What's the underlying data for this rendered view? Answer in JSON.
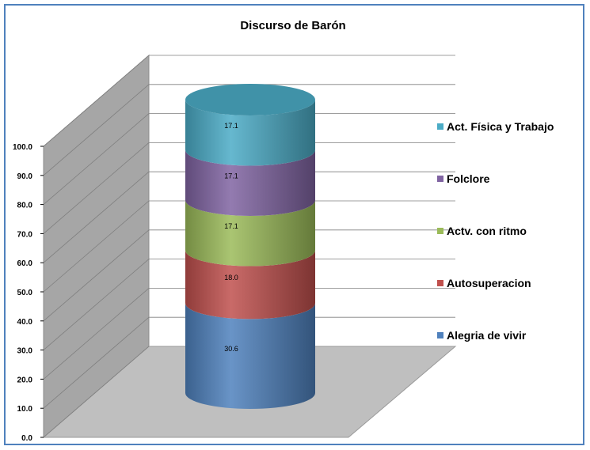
{
  "chart_data": {
    "type": "bar",
    "title": "Discurso de Barón",
    "xlabel": "",
    "ylabel": "",
    "ylim": [
      0,
      100
    ],
    "y_ticks": [
      "0.0",
      "10.0",
      "20.0",
      "30.0",
      "40.0",
      "50.0",
      "60.0",
      "70.0",
      "80.0",
      "90.0",
      "100.0"
    ],
    "grid": true,
    "stacked": true,
    "style": "3d-cylinder",
    "legend_position": "right",
    "series": [
      {
        "name": "Alegria de vivir",
        "value": 30.6,
        "label": "30.6",
        "color": "#4f81bd"
      },
      {
        "name": "Autosuperacion",
        "value": 18.0,
        "label": "18.0",
        "color": "#c0504d"
      },
      {
        "name": "Actv. con ritmo",
        "value": 17.1,
        "label": "17.1",
        "color": "#9bbb59"
      },
      {
        "name": "Folclore",
        "value": 17.1,
        "label": "17.1",
        "color": "#8064a2"
      },
      {
        "name": "Act. Física y Trabajo",
        "value": 17.1,
        "label": "17.1",
        "color": "#4bacc6"
      }
    ]
  }
}
